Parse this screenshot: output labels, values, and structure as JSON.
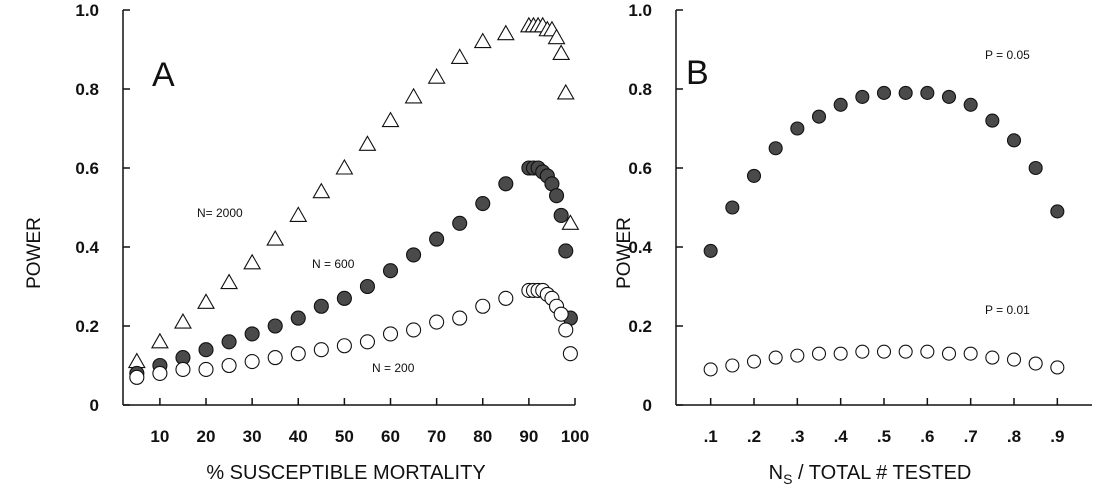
{
  "chart_data": [
    {
      "type": "scatter",
      "panel_label": "A",
      "xlabel": "% SUSCEPTIBLE MORTALITY",
      "ylabel": "POWER",
      "xlim": [
        2,
        100
      ],
      "ylim": [
        0,
        1.0
      ],
      "x_ticks": [
        10,
        20,
        30,
        40,
        50,
        60,
        70,
        80,
        90,
        100
      ],
      "x_tick_labels": [
        "10",
        "20",
        "30",
        "40",
        "50",
        "60",
        "70",
        "80",
        "90",
        "100"
      ],
      "y_ticks": [
        0,
        0.2,
        0.4,
        0.6,
        0.8,
        1.0
      ],
      "y_tick_labels": [
        "0",
        "0.2",
        "0.4",
        "0.6",
        "0.8",
        "1.0"
      ],
      "grid": false,
      "series": [
        {
          "name": "N= 2000",
          "marker": "triangle-open",
          "x": [
            5,
            10,
            15,
            20,
            25,
            30,
            35,
            40,
            45,
            50,
            55,
            60,
            65,
            70,
            75,
            80,
            85,
            90,
            91,
            92,
            93,
            94,
            95,
            96,
            97,
            98,
            99
          ],
          "y": [
            0.11,
            0.16,
            0.21,
            0.26,
            0.31,
            0.36,
            0.42,
            0.48,
            0.54,
            0.6,
            0.66,
            0.72,
            0.78,
            0.83,
            0.88,
            0.92,
            0.94,
            0.96,
            0.96,
            0.96,
            0.96,
            0.95,
            0.95,
            0.93,
            0.89,
            0.79,
            0.46
          ]
        },
        {
          "name": "N = 600",
          "marker": "circle-filled",
          "x": [
            5,
            10,
            15,
            20,
            25,
            30,
            35,
            40,
            45,
            50,
            55,
            60,
            65,
            70,
            75,
            80,
            85,
            90,
            91,
            92,
            93,
            94,
            95,
            96,
            97,
            98,
            99
          ],
          "y": [
            0.08,
            0.1,
            0.12,
            0.14,
            0.16,
            0.18,
            0.2,
            0.22,
            0.25,
            0.27,
            0.3,
            0.34,
            0.38,
            0.42,
            0.46,
            0.51,
            0.56,
            0.6,
            0.6,
            0.6,
            0.59,
            0.58,
            0.56,
            0.53,
            0.48,
            0.39,
            0.22
          ]
        },
        {
          "name": "N = 200",
          "marker": "circle-open",
          "x": [
            5,
            10,
            15,
            20,
            25,
            30,
            35,
            40,
            45,
            50,
            55,
            60,
            65,
            70,
            75,
            80,
            85,
            90,
            91,
            92,
            93,
            94,
            95,
            96,
            97,
            98,
            99
          ],
          "y": [
            0.07,
            0.08,
            0.09,
            0.09,
            0.1,
            0.11,
            0.12,
            0.13,
            0.14,
            0.15,
            0.16,
            0.18,
            0.19,
            0.21,
            0.22,
            0.25,
            0.27,
            0.29,
            0.29,
            0.29,
            0.29,
            0.28,
            0.27,
            0.25,
            0.23,
            0.19,
            0.13
          ]
        }
      ],
      "annotations": [
        "N= 2000",
        "N = 600",
        "N = 200"
      ]
    },
    {
      "type": "scatter",
      "panel_label": "B",
      "xlabel": "N",
      "xlabel_subscript": "S",
      "xlabel_rest": " / TOTAL # TESTED",
      "ylabel": "POWER",
      "xlim": [
        0.02,
        0.98
      ],
      "ylim": [
        0,
        1.0
      ],
      "x_ticks": [
        0.1,
        0.2,
        0.3,
        0.4,
        0.5,
        0.6,
        0.7,
        0.8,
        0.9
      ],
      "x_tick_labels": [
        ".1",
        ".2",
        ".3",
        ".4",
        ".5",
        ".6",
        ".7",
        ".8",
        ".9"
      ],
      "y_ticks": [
        0,
        0.2,
        0.4,
        0.6,
        0.8,
        1.0
      ],
      "y_tick_labels": [
        "0",
        "0.2",
        "0.4",
        "0.6",
        "0.8",
        "1.0"
      ],
      "grid": false,
      "series": [
        {
          "name": "P = 0.05",
          "marker": "circle-filled",
          "x": [
            0.1,
            0.15,
            0.2,
            0.25,
            0.3,
            0.35,
            0.4,
            0.45,
            0.5,
            0.55,
            0.6,
            0.65,
            0.7,
            0.75,
            0.8,
            0.85,
            0.9
          ],
          "y": [
            0.39,
            0.5,
            0.58,
            0.65,
            0.7,
            0.73,
            0.76,
            0.78,
            0.79,
            0.79,
            0.79,
            0.78,
            0.76,
            0.72,
            0.67,
            0.6,
            0.49
          ]
        },
        {
          "name": "P = 0.01",
          "marker": "circle-open",
          "x": [
            0.1,
            0.15,
            0.2,
            0.25,
            0.3,
            0.35,
            0.4,
            0.45,
            0.5,
            0.55,
            0.6,
            0.65,
            0.7,
            0.75,
            0.8,
            0.85,
            0.9
          ],
          "y": [
            0.09,
            0.1,
            0.11,
            0.12,
            0.125,
            0.13,
            0.13,
            0.135,
            0.135,
            0.135,
            0.135,
            0.13,
            0.13,
            0.12,
            0.115,
            0.105,
            0.095
          ]
        }
      ],
      "annotations": [
        "P = 0.05",
        "P = 0.01"
      ]
    }
  ],
  "colors": {
    "ink": "#111111",
    "filled_marker": "#4a4a4a",
    "background": "#ffffff"
  }
}
